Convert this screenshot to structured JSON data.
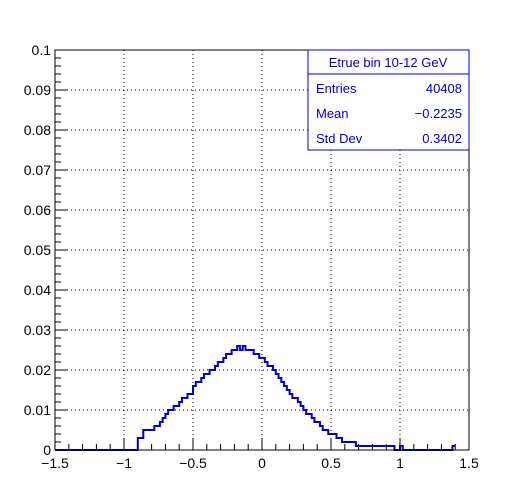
{
  "chart_data": {
    "type": "histogram",
    "title": "",
    "xlabel": "",
    "ylabel": "",
    "xlim": [
      -1.5,
      1.5
    ],
    "ylim": [
      0,
      0.1
    ],
    "grid": true,
    "x_ticks": [
      -1.5,
      -1,
      -0.5,
      0,
      0.5,
      1,
      1.5
    ],
    "x_tick_labels": [
      "−1.5",
      "−1",
      "−0.5",
      "0",
      "0.5",
      "1",
      "1.5"
    ],
    "y_ticks": [
      0,
      0.01,
      0.02,
      0.03,
      0.04,
      0.05,
      0.06,
      0.07,
      0.08,
      0.09,
      0.1
    ],
    "y_tick_labels": [
      "0",
      "0.01",
      "0.02",
      "0.03",
      "0.04",
      "0.05",
      "0.06",
      "0.07",
      "0.08",
      "0.09",
      "0.1"
    ],
    "line_color": "#0000cc",
    "bin_width": 0.02,
    "bins_start": -1.0,
    "values": [
      0.0,
      0.0,
      0.0,
      0.0,
      0.0,
      0.003,
      0.003,
      0.005,
      0.005,
      0.005,
      0.005,
      0.006,
      0.006,
      0.007,
      0.008,
      0.009,
      0.01,
      0.01,
      0.011,
      0.011,
      0.012,
      0.013,
      0.013,
      0.014,
      0.014,
      0.016,
      0.017,
      0.017,
      0.018,
      0.019,
      0.019,
      0.02,
      0.02,
      0.021,
      0.022,
      0.022,
      0.023,
      0.024,
      0.024,
      0.025,
      0.025,
      0.026,
      0.025,
      0.026,
      0.025,
      0.025,
      0.025,
      0.024,
      0.024,
      0.023,
      0.023,
      0.022,
      0.021,
      0.021,
      0.02,
      0.019,
      0.018,
      0.017,
      0.016,
      0.015,
      0.014,
      0.013,
      0.013,
      0.012,
      0.011,
      0.01,
      0.009,
      0.009,
      0.008,
      0.007,
      0.007,
      0.006,
      0.005,
      0.005,
      0.004,
      0.004,
      0.004,
      0.003,
      0.003,
      0.002,
      0.002,
      0.002,
      0.002,
      0.002,
      0.001,
      0.001,
      0.001,
      0.001,
      0.001,
      0.001,
      0.001,
      0.001,
      0.001,
      0.001,
      0.001,
      0.001,
      0.001,
      0.001,
      0.0,
      0.0,
      0.001,
      0.0,
      0.0,
      0.0,
      0.0,
      0.0,
      0.0,
      0.0,
      0.0,
      0.0,
      0.0,
      0.0,
      0.0,
      0.0,
      0.0,
      0.0,
      0.0,
      0.0,
      0.0,
      0.001
    ]
  },
  "stats_box": {
    "title": "Etrue bin 10-12 GeV",
    "rows": [
      {
        "label": "Entries",
        "value": "40408"
      },
      {
        "label": "Mean",
        "value": "−0.2235"
      },
      {
        "label": "Std Dev",
        "value": "0.3402"
      }
    ]
  }
}
